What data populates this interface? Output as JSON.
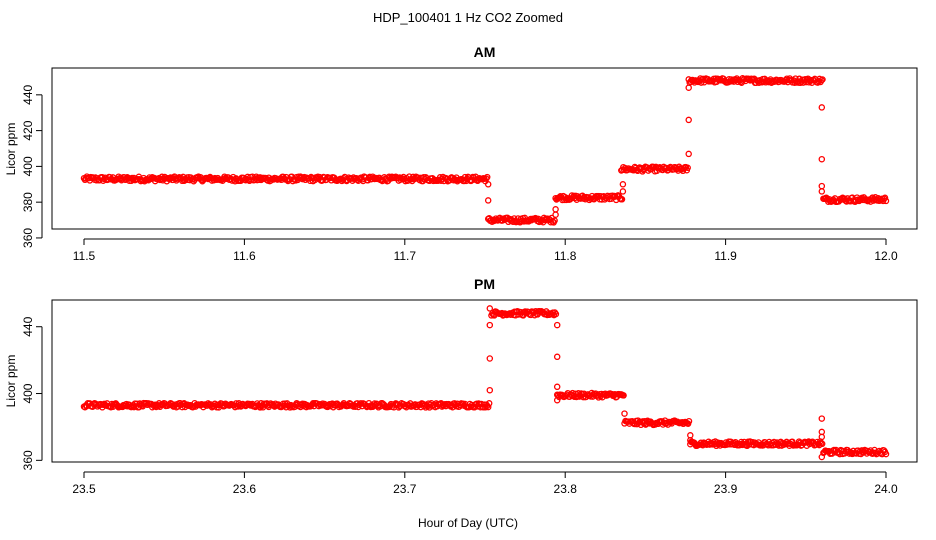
{
  "title": "HDP_100401  1 Hz CO2 Zoomed",
  "xlabel": "Hour of Day (UTC)",
  "colors": {
    "points": "#ff0000",
    "axis": "#000000"
  },
  "chart_data": [
    {
      "type": "scatter",
      "title": "AM",
      "ylabel": "Licor ppm",
      "xlim": [
        11.5,
        12.0
      ],
      "ylim": [
        365,
        455
      ],
      "xticks": [
        "11.5",
        "11.6",
        "11.7",
        "11.8",
        "11.9",
        "12.0"
      ],
      "yticks": [
        "360",
        "380",
        "400",
        "420",
        "440"
      ],
      "grid": false,
      "marker": "open-circle",
      "levels": [
        {
          "x": [
            11.5,
            11.752
          ],
          "y": 393
        },
        {
          "x": [
            11.752,
            11.793
          ],
          "y": 370
        },
        {
          "x": [
            11.794,
            11.835
          ],
          "y": 382.5
        },
        {
          "x": [
            11.835,
            11.877
          ],
          "y": 398.5
        },
        {
          "x": [
            11.877,
            11.96
          ],
          "y": 448
        },
        {
          "x": [
            11.961,
            12.0
          ],
          "y": 381.5
        }
      ],
      "transitions": [
        {
          "x": 11.752,
          "y": [
            390,
            381
          ]
        },
        {
          "x": 11.794,
          "y": [
            373,
            376
          ]
        },
        {
          "x": 11.836,
          "y": [
            386,
            390
          ]
        },
        {
          "x": 11.877,
          "y": [
            407,
            426,
            444
          ]
        },
        {
          "x": 11.96,
          "y": [
            433,
            404,
            389,
            386
          ]
        }
      ]
    },
    {
      "type": "scatter",
      "title": "PM",
      "ylabel": "Licor ppm",
      "xlim": [
        23.5,
        24.0
      ],
      "ylim": [
        359,
        456
      ],
      "xticks": [
        "23.5",
        "23.6",
        "23.7",
        "23.8",
        "23.9",
        "24.0"
      ],
      "yticks": [
        "360",
        "400",
        "440"
      ],
      "grid": false,
      "marker": "open-circle",
      "levels": [
        {
          "x": [
            23.5,
            23.753
          ],
          "y": 393
        },
        {
          "x": [
            23.754,
            23.794
          ],
          "y": 448
        },
        {
          "x": [
            23.795,
            23.836
          ],
          "y": 399
        },
        {
          "x": [
            23.837,
            23.877
          ],
          "y": 382.5
        },
        {
          "x": [
            23.878,
            23.96
          ],
          "y": 370
        },
        {
          "x": [
            23.961,
            24.0
          ],
          "y": 365
        }
      ],
      "transitions": [
        {
          "x": 23.753,
          "y": [
            402,
            421,
            441,
            451
          ]
        },
        {
          "x": 23.795,
          "y": [
            441,
            422,
            404,
            396
          ]
        },
        {
          "x": 23.837,
          "y": [
            388
          ]
        },
        {
          "x": 23.878,
          "y": [
            375,
            372
          ]
        },
        {
          "x": 23.96,
          "y": [
            385,
            377,
            374,
            362
          ]
        }
      ]
    }
  ]
}
